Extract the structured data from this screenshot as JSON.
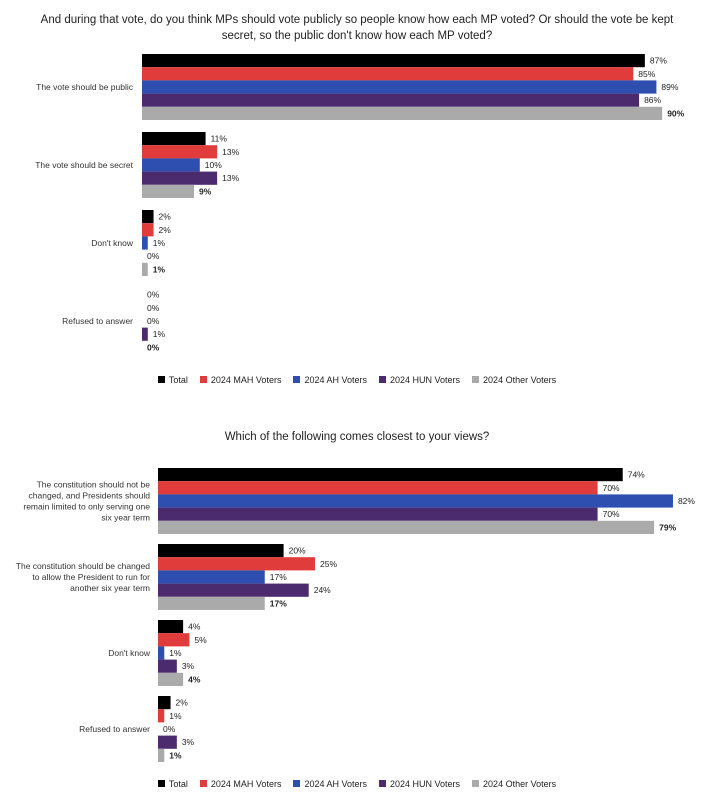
{
  "colors": {
    "total": "#000000",
    "mah": "#e03c3c",
    "ah": "#2e4fb0",
    "hun": "#4b2a6e",
    "other": "#aaaaaa"
  },
  "chart_data": [
    {
      "type": "bar",
      "orientation": "horizontal",
      "title": "And during that vote, do you think MPs should vote publicly so people know how each MP voted? Or should the vote be kept secret, so the public don't know how each MP voted?",
      "categories": [
        "The vote should be public",
        "The vote should be secret",
        "Don't know",
        "Refused to answer"
      ],
      "series": [
        {
          "name": "Total",
          "values": [
            87,
            11,
            2,
            0
          ]
        },
        {
          "name": "2024 MAH Voters",
          "values": [
            85,
            13,
            2,
            0
          ]
        },
        {
          "name": "2024 AH Voters",
          "values": [
            89,
            10,
            1,
            0
          ]
        },
        {
          "name": "2024 HUN Voters",
          "values": [
            86,
            13,
            0,
            1
          ]
        },
        {
          "name": "2024 Other Voters",
          "values": [
            90,
            9,
            1,
            0
          ]
        }
      ],
      "value_suffix": "%",
      "legend_position": "bottom",
      "grid": false
    },
    {
      "type": "bar",
      "orientation": "horizontal",
      "title": "Which of the following comes closest to your views?",
      "categories": [
        "The constitution should not be changed, and Presidents should remain limited to only serving one six year term",
        "The constitution should be changed to allow the President to run for another six year term",
        "Don't know",
        "Refused to answer"
      ],
      "series": [
        {
          "name": "Total",
          "values": [
            74,
            20,
            4,
            2
          ]
        },
        {
          "name": "2024 MAH Voters",
          "values": [
            70,
            25,
            5,
            1
          ]
        },
        {
          "name": "2024 AH Voters",
          "values": [
            82,
            17,
            1,
            0
          ]
        },
        {
          "name": "2024 HUN Voters",
          "values": [
            70,
            24,
            3,
            3
          ]
        },
        {
          "name": "2024 Other Voters",
          "values": [
            79,
            17,
            4,
            1
          ]
        }
      ],
      "value_suffix": "%",
      "legend_position": "bottom",
      "grid": false
    }
  ]
}
